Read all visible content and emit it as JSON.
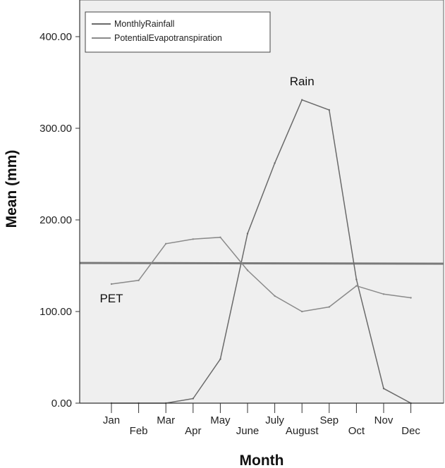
{
  "chart_data": {
    "type": "line",
    "xlabel": "Month",
    "ylabel": "Mean (mm)",
    "categories": [
      "Jan",
      "Feb",
      "Mar",
      "Apr",
      "May",
      "June",
      "July",
      "August",
      "Sep",
      "Oct",
      "Nov",
      "Dec"
    ],
    "y_ticks": [
      "0.00",
      "100.00",
      "200.00",
      "300.00",
      "400.00"
    ],
    "ylim": [
      0,
      440
    ],
    "grid": false,
    "legend_position": "top-left",
    "series": [
      {
        "name": "MonthlyRainfall",
        "color": "#6a6a6a",
        "values": [
          0,
          0,
          0,
          5,
          48,
          185,
          262,
          331,
          320,
          135,
          16,
          0
        ]
      },
      {
        "name": "PotentialEvapotranspiration",
        "color": "#8a8a8a",
        "values": [
          130,
          134,
          174,
          179,
          181,
          145,
          117,
          100,
          105,
          128,
          119,
          115
        ]
      }
    ],
    "reference_line": {
      "value": 153,
      "color": "#7a7a7a"
    },
    "annotations": [
      {
        "text": "Rain",
        "month": "August",
        "value": 347
      },
      {
        "text": "PET",
        "month": "Jan",
        "value": 110
      }
    ]
  }
}
